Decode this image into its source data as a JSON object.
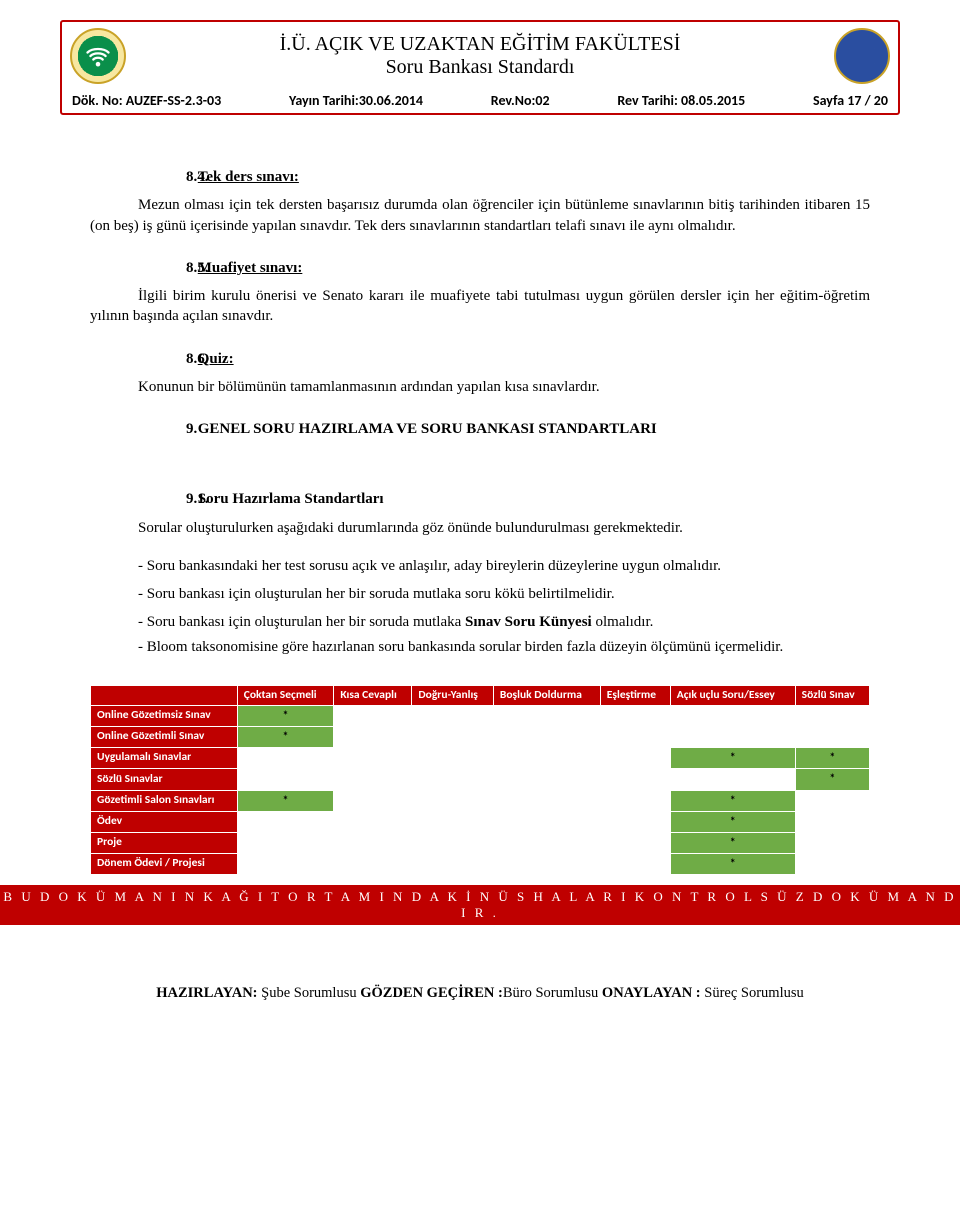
{
  "header": {
    "title1": "İ.Ü. AÇIK VE UZAKTAN EĞİTİM FAKÜLTESİ",
    "title2": "Soru Bankası Standardı",
    "doc_no_label": "Dök. No: AUZEF-SS-2.3-03",
    "pub_date": "Yayın Tarihi:30.06.2014",
    "rev_no": "Rev.No:02",
    "rev_date": "Rev Tarihi: 08.05.2015",
    "page": "Sayfa 17 / 20",
    "left_logo_color": "#0a8f4a",
    "right_logo_color": "#2a4ea0"
  },
  "s84": {
    "num": "8.4.",
    "title": "Tek ders sınavı:",
    "body": "Mezun olması için tek dersten başarısız durumda olan öğrenciler için bütünleme sınavlarının bitiş tarihinden itibaren 15 (on beş) iş günü içerisinde yapılan sınavdır. Tek ders sınavlarının standartları telafi sınavı ile aynı olmalıdır."
  },
  "s85": {
    "num": "8.5.",
    "title": "Muafiyet sınavı:",
    "body": "İlgili birim kurulu önerisi ve Senato kararı ile muafiyete tabi tutulması uygun görülen dersler için her eğitim-öğretim yılının başında açılan sınavdır."
  },
  "s86": {
    "num": "8.6.",
    "title": "Quiz:",
    "body": "Konunun bir bölümünün tamamlanmasının ardından yapılan kısa sınavlardır."
  },
  "s9": {
    "num": "9.",
    "title": "GENEL SORU HAZIRLAMA VE SORU BANKASI STANDARTLARI"
  },
  "s91": {
    "num": "9.1.",
    "title": "Soru Hazırlama Standartları",
    "intro": "Sorular oluşturulurken aşağıdaki durumlarında göz önünde bulundurulması gerekmektedir.",
    "b1": "- Soru bankasındaki her test sorusu açık ve anlaşılır, aday bireylerin düzeylerine uygun olmalıdır.",
    "b2": "- Soru bankası için oluşturulan her bir soruda mutlaka soru kökü belirtilmelidir.",
    "b3_pre": "- Soru bankası için oluşturulan her bir soruda mutlaka ",
    "b3_bold": "Sınav Soru Künyesi",
    "b3_post": " olmalıdır.",
    "b4": "- Bloom taksonomisine göre hazırlanan soru bankasında sorular birden fazla düzeyin ölçümünü içermelidir."
  },
  "table": {
    "header_bg": "#bf0000",
    "row_bg": "#bf0000",
    "green_bg": "#6fac46",
    "text_color": "#ffffff",
    "columns": [
      "",
      "Çoktan Seçmeli",
      "Kısa Cevaplı",
      "Doğru-Yanlış",
      "Boşluk Doldurma",
      "Eşleştirme",
      "Açık uçlu Soru/Essey",
      "Sözlü Sınav"
    ],
    "rows": [
      {
        "label": "Online Gözetimsiz Sınav",
        "cells": [
          "*",
          "",
          "",
          "",
          "",
          "",
          ""
        ],
        "green": [
          0
        ]
      },
      {
        "label": "Online Gözetimli Sınav",
        "cells": [
          "*",
          "",
          "",
          "",
          "",
          "",
          ""
        ],
        "green": [
          0
        ]
      },
      {
        "label": "Uygulamalı Sınavlar",
        "cells": [
          "",
          "",
          "",
          "",
          "",
          "*",
          "*"
        ],
        "green": [
          5,
          6
        ]
      },
      {
        "label": "Sözlü Sınavlar",
        "cells": [
          "",
          "",
          "",
          "",
          "",
          "",
          "*"
        ],
        "green": [
          6
        ]
      },
      {
        "label": "Gözetimli Salon Sınavları",
        "cells": [
          "*",
          "",
          "",
          "",
          "",
          "*",
          ""
        ],
        "green": [
          0,
          5
        ]
      },
      {
        "label": "Ödev",
        "cells": [
          "",
          "",
          "",
          "",
          "",
          "*",
          ""
        ],
        "green": [
          5
        ]
      },
      {
        "label": "Proje",
        "cells": [
          "",
          "",
          "",
          "",
          "",
          "*",
          ""
        ],
        "green": [
          5
        ]
      },
      {
        "label": "Dönem Ödevi / Projesi",
        "cells": [
          "",
          "",
          "",
          "",
          "",
          "*",
          ""
        ],
        "green": [
          5
        ]
      }
    ]
  },
  "banner": "B U   D O K Ü M A N I N   K A Ğ I T   O R T A M I N D A K İ   N Ü S H A L A R I   K O N T R O L S Ü Z   D O K Ü M A N D I R .",
  "footer": {
    "l1": "HAZIRLAYAN:",
    "v1": " Şube Sorumlusu   ",
    "l2": "GÖZDEN GEÇİREN :",
    "v2": "Büro Sorumlusu   ",
    "l3": "ONAYLAYAN :",
    "v3": " Süreç Sorumlusu"
  }
}
